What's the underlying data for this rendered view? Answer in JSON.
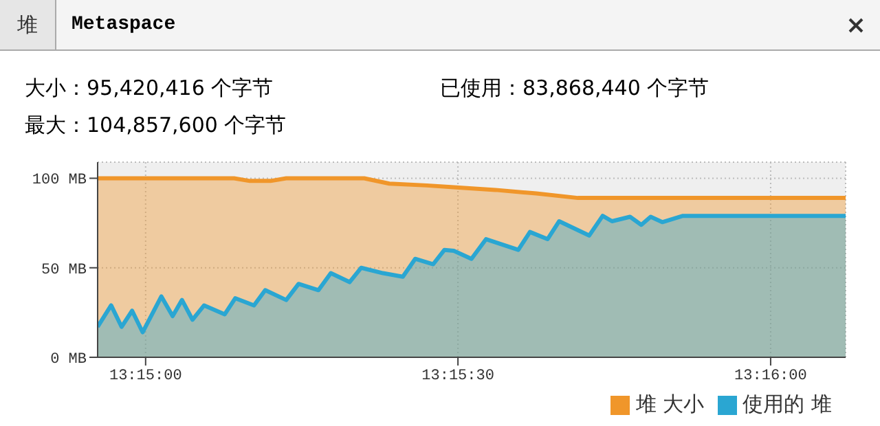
{
  "chart_data": {
    "type": "area",
    "title": "Metaspace",
    "annotations": [
      "堆",
      "大小：95,420,416 个字节",
      "已使用：83,868,440 个字节",
      "最大：104,857,600 个字节"
    ],
    "series": [
      {
        "name": "堆 大小",
        "color": "#f0962a",
        "x": [
          13.24872,
          13.25236,
          13.25278,
          13.25333,
          13.25375,
          13.25583,
          13.2565,
          13.2575,
          13.25822,
          13.25933,
          13.26042,
          13.26153,
          13.26867
        ],
        "values": [
          100,
          100,
          98.5,
          98.5,
          100,
          100,
          97,
          96,
          95,
          93.5,
          91.5,
          89,
          89
        ]
      },
      {
        "name": "使用的 堆",
        "color": "#2aa6d2",
        "x": [
          13.24872,
          13.24908,
          13.24936,
          13.24964,
          13.24992,
          13.25042,
          13.25072,
          13.25097,
          13.25125,
          13.25156,
          13.25211,
          13.25239,
          13.25289,
          13.25319,
          13.25375,
          13.25408,
          13.25461,
          13.25494,
          13.25544,
          13.25575,
          13.25633,
          13.25686,
          13.25719,
          13.25767,
          13.25797,
          13.25822,
          13.25869,
          13.25908,
          13.25994,
          13.26025,
          13.26072,
          13.26103,
          13.26183,
          13.26219,
          13.26244,
          13.26292,
          13.26322,
          13.26347,
          13.26378,
          13.26433,
          13.26867
        ],
        "values": [
          17,
          29,
          17,
          26,
          14,
          34,
          23,
          32,
          21,
          29,
          24,
          33,
          29,
          37.5,
          32,
          41,
          37.5,
          47,
          42,
          50,
          47,
          45,
          55,
          52,
          60,
          59.5,
          55,
          66,
          60,
          70,
          66,
          76,
          68,
          79,
          76,
          78.5,
          74,
          78.5,
          75.5,
          79,
          79
        ]
      }
    ],
    "xlim": [
      13.24872,
      13.26867
    ],
    "xticks": [
      {
        "value": 13.25,
        "label": "13:15:00"
      },
      {
        "value": 13.25833,
        "label": "13:15:30"
      },
      {
        "value": 13.26667,
        "label": "13:16:00"
      }
    ],
    "ylim": [
      0,
      109
    ],
    "yticks": [
      {
        "value": 0,
        "label": "0 MB"
      },
      {
        "value": 50,
        "label": "50 MB"
      },
      {
        "value": 100,
        "label": "100 MB"
      }
    ],
    "grid": true,
    "legend": "bottom right"
  }
}
